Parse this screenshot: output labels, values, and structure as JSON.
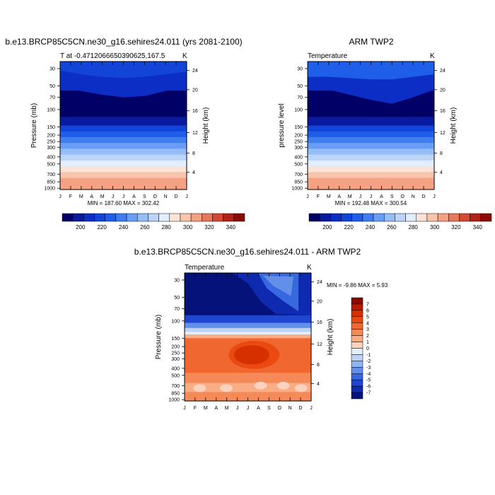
{
  "chart_data": [
    {
      "type": "heatmap",
      "title": "b.e13.BRCP85C5CN.ne30_g16.sehires24.011 (yrs 2081-2100)",
      "subtitle_left": "T at -0.4712066650390625,167.5",
      "subtitle_right": "K",
      "ylabel": "Pressure (mb)",
      "ylabel_right": "Height (km)",
      "minmax_text": "MIN = 187.60  MAX = 302.42",
      "min": 187.6,
      "max": 302.42,
      "x_ticks": [
        "J",
        "F",
        "M",
        "A",
        "M",
        "J",
        "J",
        "A",
        "S",
        "O",
        "N",
        "D",
        "J"
      ],
      "y_ticks": [
        "30",
        "50",
        "70",
        "100",
        "150",
        "200",
        "250",
        "300",
        "400",
        "500",
        "700",
        "850",
        "1000"
      ],
      "height_ticks": [
        "24",
        "20",
        "16",
        "12",
        "8",
        "4"
      ],
      "colorbar_labels": [
        "200",
        "220",
        "240",
        "260",
        "280",
        "300",
        "320",
        "340"
      ]
    },
    {
      "type": "heatmap",
      "title": "ARM TWP2",
      "subtitle_left": "Temperature",
      "subtitle_right": "K",
      "ylabel": "pressure level",
      "ylabel_right": "Height (km)",
      "minmax_text": "MIN = 192.48  MAX = 300.54",
      "min": 192.48,
      "max": 300.54,
      "x_ticks": [
        "J",
        "F",
        "M",
        "A",
        "M",
        "J",
        "J",
        "A",
        "S",
        "O",
        "N",
        "D",
        "J"
      ],
      "y_ticks": [
        "30",
        "50",
        "70",
        "100",
        "150",
        "200",
        "250",
        "300",
        "400",
        "500",
        "700",
        "850",
        "1000"
      ],
      "height_ticks": [
        "24",
        "20",
        "16",
        "12",
        "8",
        "4"
      ],
      "colorbar_labels": [
        "200",
        "220",
        "240",
        "260",
        "280",
        "300",
        "320",
        "340"
      ]
    },
    {
      "type": "heatmap",
      "title": "b.e13.BRCP85C5CN.ne30_g16.sehires24.011 - ARM TWP2",
      "subtitle_left": "Temperature",
      "subtitle_right": "K",
      "ylabel": "Pressure (mb)",
      "ylabel_right": "Height (km)",
      "minmax_text": "MIN =  -9.86  MAX =   5.93",
      "min": -9.86,
      "max": 5.93,
      "x_ticks": [
        "J",
        "F",
        "M",
        "A",
        "M",
        "J",
        "J",
        "A",
        "S",
        "O",
        "N",
        "D",
        "J"
      ],
      "y_ticks": [
        "30",
        "50",
        "70",
        "100",
        "150",
        "200",
        "250",
        "300",
        "400",
        "500",
        "700",
        "850",
        "1000"
      ],
      "height_ticks": [
        "24",
        "20",
        "16",
        "12",
        "8",
        "4"
      ],
      "colorbar_labels": [
        "7",
        "6",
        "5",
        "4",
        "3",
        "2",
        "1",
        "0",
        "-1",
        "-2",
        "-3",
        "-4",
        "-5",
        "-6",
        "-7"
      ]
    }
  ],
  "colors": {
    "temperature_scale": [
      "#000066",
      "#0a1a9e",
      "#0d2ec4",
      "#1244d8",
      "#1f5ee8",
      "#3f7df0",
      "#6a9df5",
      "#95bdf8",
      "#bcd4fa",
      "#e2eefd",
      "#fbe3d8",
      "#f8c5ac",
      "#f4a283",
      "#e8785a",
      "#d24a35",
      "#b32218",
      "#8a0c08"
    ],
    "difference_scale": [
      "#8a0a00",
      "#b51a00",
      "#d63000",
      "#ea4a10",
      "#f06830",
      "#f58a58",
      "#f8ad85",
      "#fbd2bd",
      "#e4eefc",
      "#bcd2f6",
      "#91b3f0",
      "#628fe8",
      "#3868e0",
      "#1e46d0",
      "#0d2ab0",
      "#04127a"
    ]
  }
}
